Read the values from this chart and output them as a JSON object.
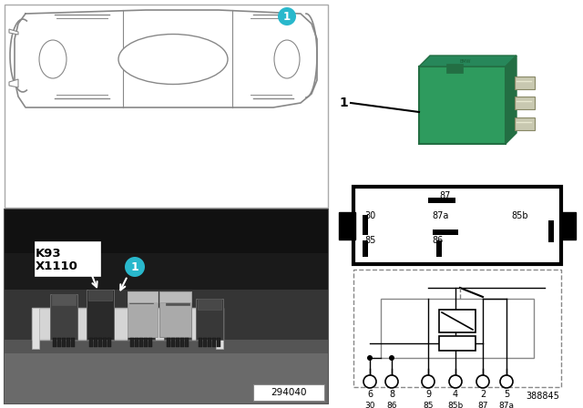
{
  "bg_color": "#ffffff",
  "cyan_color": "#29b8cc",
  "k93_text": "K93\nX1110",
  "part_num_photo": "294040",
  "part_num_relay": "388845",
  "pin_row1": [
    "6",
    "8",
    "9",
    "4",
    "2",
    "5"
  ],
  "pin_row2": [
    "30",
    "86",
    "85",
    "85b",
    "87",
    "87a"
  ],
  "relay_green_body": "#2e9b5e",
  "relay_green_dark": "#236e43",
  "relay_green_mid": "#27875a",
  "photo_bg_dark": "#2a2a2a",
  "photo_bg_mid": "#444444",
  "photo_bg_light": "#888888",
  "tray_color": "#c8c8c8",
  "relay_dark_body": "#333333",
  "relay_medium_body": "#555555",
  "relay_light_body": "#777777"
}
